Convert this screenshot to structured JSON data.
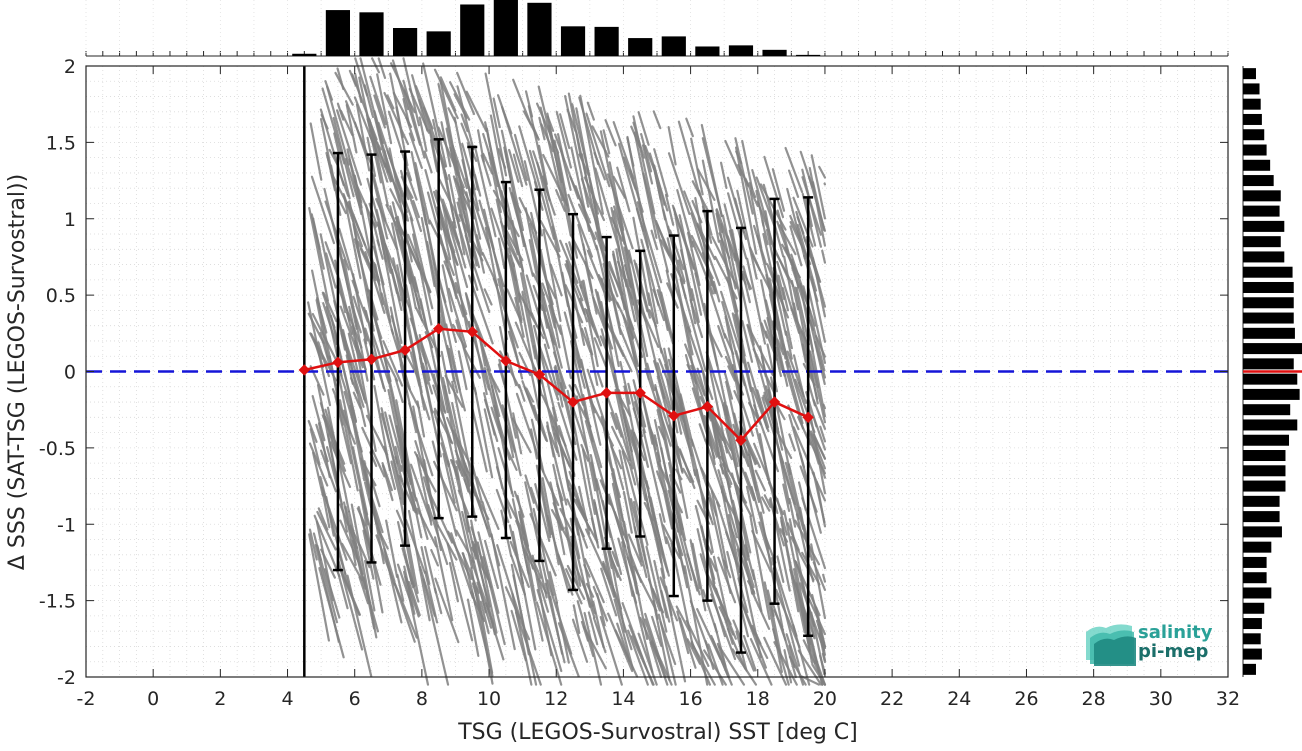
{
  "chart_data": {
    "type": "scatter",
    "xlabel": "TSG (LEGOS-Survostral) SST [deg C]",
    "ylabel": "Δ SSS (SAT-TSG (LEGOS-Survostral))",
    "xlim": [
      -2,
      32
    ],
    "ylim": [
      -2,
      2
    ],
    "x_ticks": [
      -2,
      0,
      2,
      4,
      6,
      8,
      10,
      12,
      14,
      16,
      18,
      20,
      22,
      24,
      26,
      28,
      30,
      32
    ],
    "y_ticks": [
      -2,
      -1.5,
      -1,
      -0.5,
      0,
      0.5,
      1,
      1.5,
      2
    ],
    "y_tick_labels": [
      "-2",
      "-1.5",
      "-1",
      "-0.5",
      "0",
      "0.5",
      "1",
      "1.5",
      "2"
    ],
    "grid": true,
    "reference_line": {
      "y": 0,
      "style": "dashed",
      "color": "#1515d8"
    },
    "vertical_line": {
      "x": 4.5,
      "color": "#000000"
    },
    "binned_mean": {
      "color": "#e01010",
      "x": [
        4.5,
        5.5,
        6.5,
        7.5,
        8.5,
        9.5,
        10.5,
        11.5,
        12.5,
        13.5,
        14.5,
        15.5,
        16.5,
        17.5,
        18.5,
        19.5
      ],
      "mean": [
        0.01,
        0.06,
        0.08,
        0.14,
        0.28,
        0.26,
        0.07,
        -0.02,
        -0.2,
        -0.14,
        -0.14,
        -0.29,
        -0.23,
        -0.45,
        -0.2,
        -0.3
      ],
      "err_low": [
        null,
        -1.3,
        -1.25,
        -1.14,
        -0.96,
        -0.95,
        -1.09,
        -1.24,
        -1.43,
        -1.16,
        -1.08,
        -1.47,
        -1.5,
        -1.84,
        -1.52,
        -1.73
      ],
      "err_high": [
        null,
        1.43,
        1.42,
        1.44,
        1.52,
        1.47,
        1.24,
        1.19,
        1.03,
        0.88,
        0.79,
        0.89,
        1.05,
        0.94,
        1.13,
        1.14
      ]
    },
    "scatter_color": "#808080",
    "scatter_extent": {
      "x_min": 4.6,
      "x_max": 20.0
    },
    "top_histogram": {
      "bin_centers": [
        4.5,
        5.5,
        6.5,
        7.5,
        8.5,
        9.5,
        10.5,
        11.5,
        12.5,
        13.5,
        14.5,
        15.5,
        16.5,
        17.5,
        18.5,
        19.5
      ],
      "relative_counts": [
        0.04,
        0.82,
        0.78,
        0.5,
        0.44,
        0.92,
        1.0,
        0.95,
        0.53,
        0.52,
        0.32,
        0.35,
        0.17,
        0.19,
        0.11,
        0.02
      ]
    },
    "right_histogram": {
      "bin_centers": [
        1.95,
        1.85,
        1.75,
        1.65,
        1.55,
        1.45,
        1.35,
        1.25,
        1.15,
        1.05,
        0.95,
        0.85,
        0.75,
        0.65,
        0.55,
        0.45,
        0.35,
        0.25,
        0.15,
        0.05,
        -0.05,
        -0.15,
        -0.25,
        -0.35,
        -0.45,
        -0.55,
        -0.65,
        -0.75,
        -0.85,
        -0.95,
        -1.05,
        -1.15,
        -1.25,
        -1.35,
        -1.45,
        -1.55,
        -1.65,
        -1.75,
        -1.85,
        -1.95
      ],
      "relative_counts": [
        0.22,
        0.28,
        0.3,
        0.32,
        0.36,
        0.4,
        0.46,
        0.52,
        0.64,
        0.62,
        0.7,
        0.64,
        0.7,
        0.84,
        0.86,
        0.86,
        0.86,
        0.88,
        1.0,
        0.86,
        0.92,
        0.96,
        0.8,
        0.92,
        0.78,
        0.72,
        0.72,
        0.72,
        0.62,
        0.62,
        0.66,
        0.48,
        0.4,
        0.4,
        0.48,
        0.36,
        0.32,
        0.3,
        0.32,
        0.22
      ],
      "mean_marker": {
        "y": 0,
        "color": "#e01010"
      }
    }
  },
  "logo": {
    "line1": "salinity",
    "line2": "pi-mep",
    "color_main": "#2aa198",
    "color_dark": "#1b6f6a"
  }
}
